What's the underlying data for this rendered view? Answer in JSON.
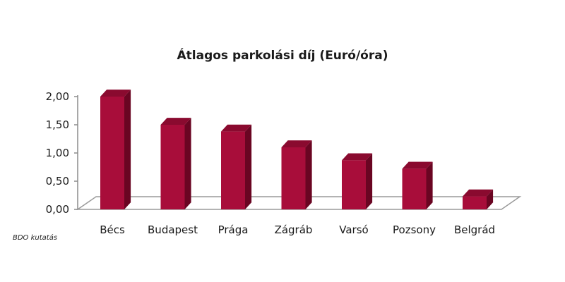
{
  "chart_data": {
    "type": "bar",
    "title": "Átlagos parkolási díj (Euró/óra)",
    "categories": [
      "Bécs",
      "Budapest",
      "Prága",
      "Zágráb",
      "Varsó",
      "Pozsony",
      "Belgrád"
    ],
    "values": [
      2.0,
      1.5,
      1.38,
      1.1,
      0.87,
      0.72,
      0.23
    ],
    "ylim": [
      0,
      2
    ],
    "yticks": [
      "0,00",
      "0,50",
      "1,00",
      "1,50",
      "2,00"
    ],
    "grid": false,
    "legend": "none",
    "style": "3d-column",
    "colors": {
      "bar_front": "#a80d3a",
      "bar_side": "#6a0522",
      "bar_top": "#8a0a2f",
      "floor_line": "#9a9a9a",
      "axis_line": "#8c8c8c"
    }
  },
  "source": "BDO kutatás"
}
